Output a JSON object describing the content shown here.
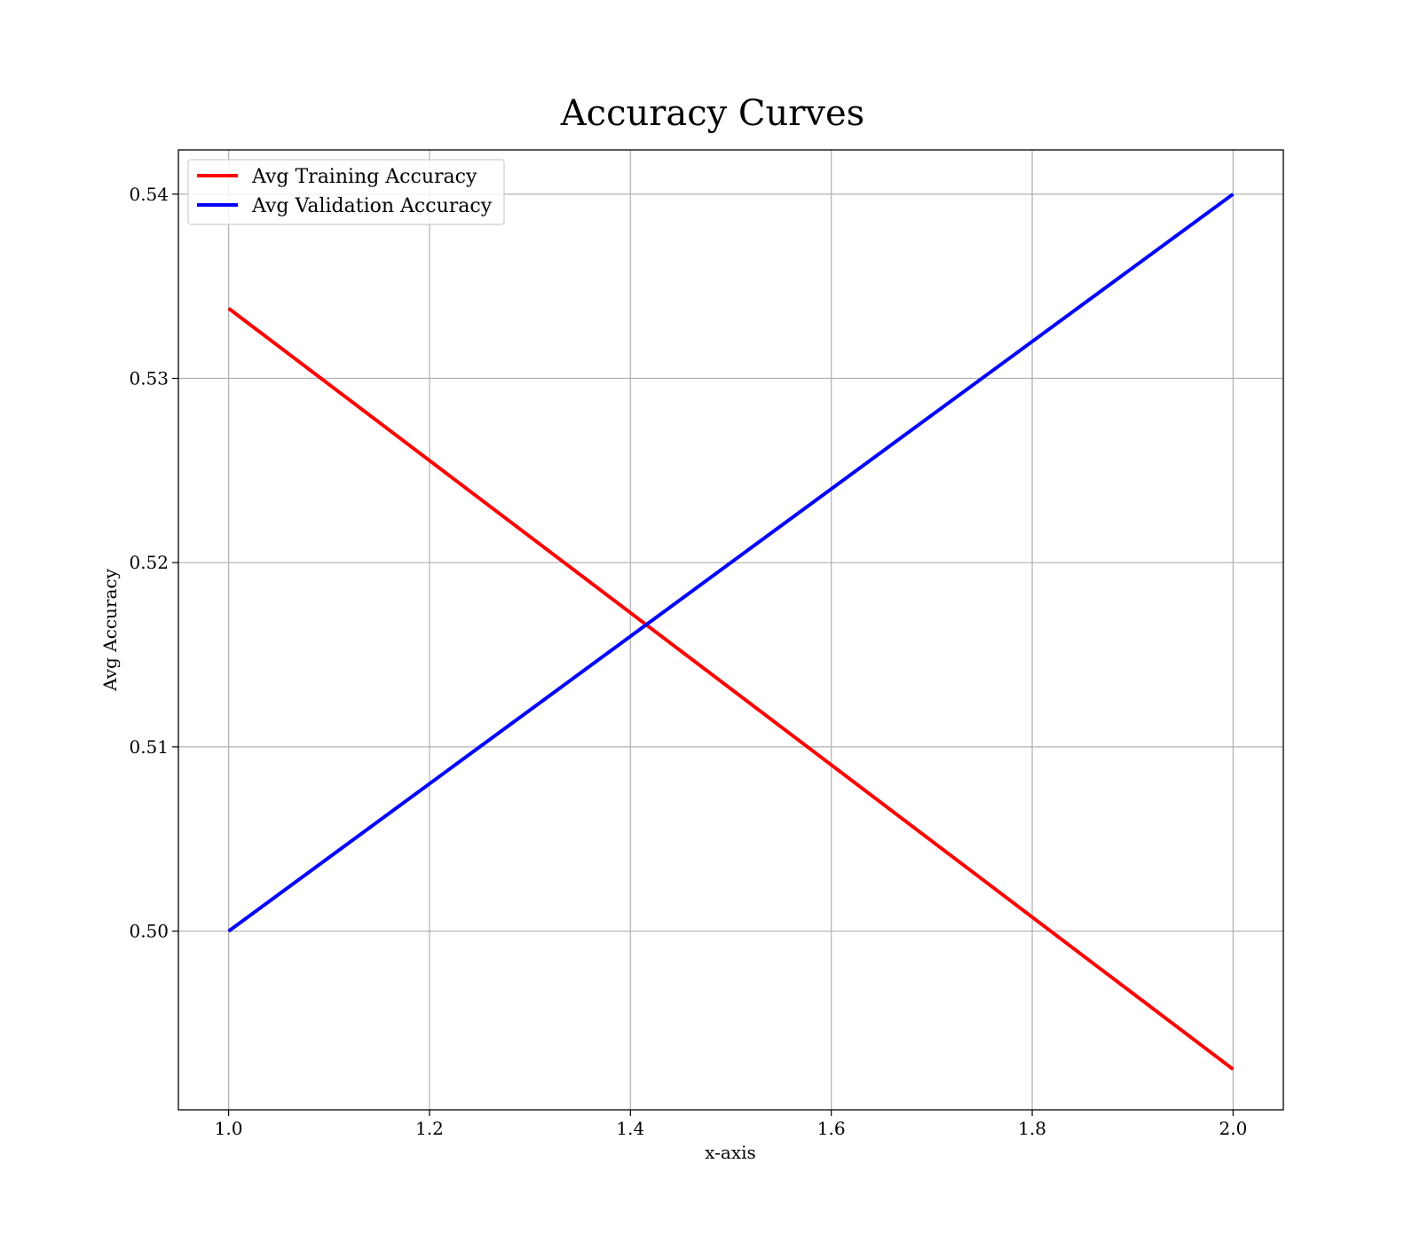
{
  "chart_data": {
    "type": "line",
    "title": "Accuracy Curves",
    "xlabel": "x-axis",
    "ylabel": "Avg Accuracy",
    "x": [
      1.0,
      2.0
    ],
    "xlim": [
      0.95,
      2.05
    ],
    "ylim": [
      0.4903,
      0.5424
    ],
    "xticks": [
      "1.0",
      "1.2",
      "1.4",
      "1.6",
      "1.8",
      "2.0"
    ],
    "yticks": [
      "0.50",
      "0.51",
      "0.52",
      "0.53",
      "0.54"
    ],
    "grid": true,
    "legend_position": "top-left",
    "series": [
      {
        "name": "Avg Training Accuracy",
        "color": "#ff0000",
        "values": [
          0.5338,
          0.4925
        ]
      },
      {
        "name": "Avg Validation Accuracy",
        "color": "#0000ff",
        "values": [
          0.5,
          0.54
        ]
      }
    ]
  }
}
